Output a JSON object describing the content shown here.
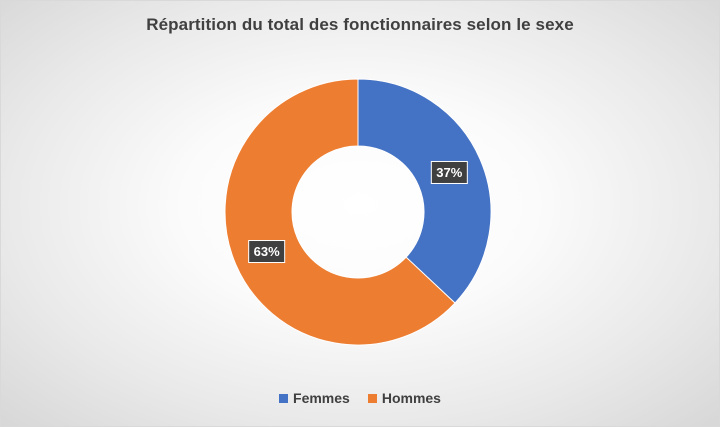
{
  "chart_data": {
    "type": "pie",
    "variant": "donut",
    "title": "Répartition du total des fonctionnaires selon le sexe",
    "categories": [
      "Femmes",
      "Hommes"
    ],
    "values": [
      37,
      63
    ],
    "data_labels": [
      "37%",
      "63%"
    ],
    "colors": [
      "#4472C4",
      "#ED7D31"
    ],
    "start_angle_deg": 0,
    "legend_position": "bottom"
  }
}
